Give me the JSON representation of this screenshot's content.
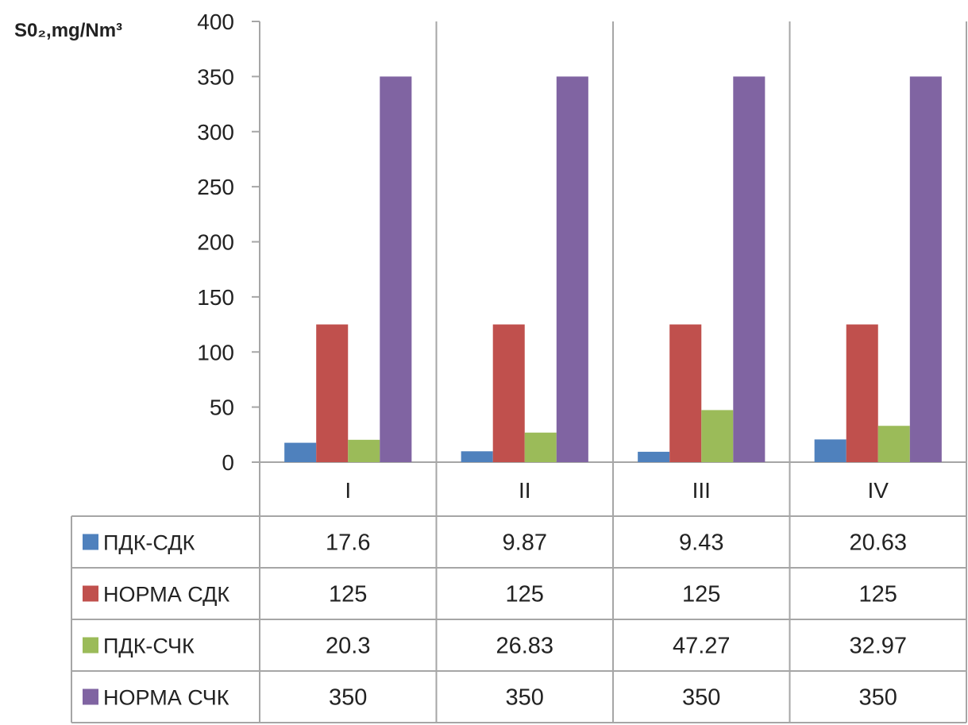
{
  "chart_data": {
    "type": "bar",
    "ylabel": "S0₂,mg/Nm³",
    "categories": [
      "I",
      "II",
      "III",
      "IV"
    ],
    "ylim": [
      0,
      400
    ],
    "yticks": [
      0,
      50,
      100,
      150,
      200,
      250,
      300,
      350,
      400
    ],
    "grid": "vertical category separators only",
    "legend": "data table below chart",
    "series": [
      {
        "name": "ПДК-СДК",
        "color": "#4f81bd",
        "values": [
          17.6,
          9.87,
          9.43,
          20.63
        ],
        "labels": [
          "17.6",
          "9.87",
          "9.43",
          "20.63"
        ]
      },
      {
        "name": "НОРМА СДК",
        "color": "#c0504d",
        "values": [
          125,
          125,
          125,
          125
        ],
        "labels": [
          "125",
          "125",
          "125",
          "125"
        ]
      },
      {
        "name": "ПДК-СЧК",
        "color": "#9bbb59",
        "values": [
          20.3,
          26.83,
          47.27,
          32.97
        ],
        "labels": [
          "20.3",
          "26.83",
          "47.27",
          "32.97"
        ]
      },
      {
        "name": "НОРМА СЧК",
        "color": "#8064a2",
        "values": [
          350,
          350,
          350,
          350
        ],
        "labels": [
          "350",
          "350",
          "350",
          "350"
        ]
      }
    ]
  }
}
